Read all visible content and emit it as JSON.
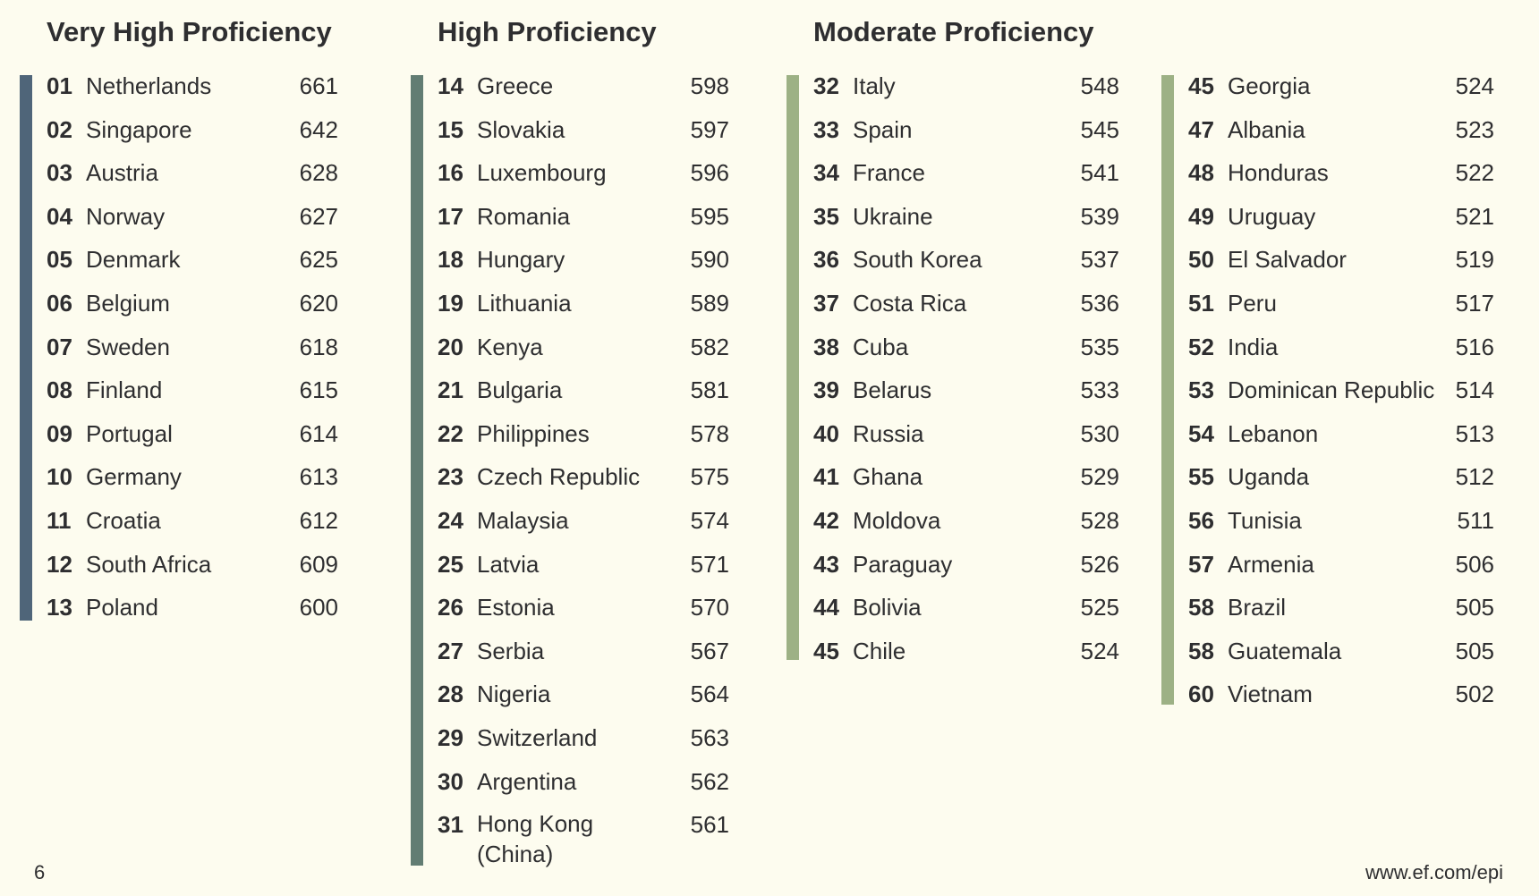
{
  "groups": [
    {
      "title": "Very High Proficiency",
      "color": "#4f6579",
      "rows": [
        {
          "rank": "01",
          "country": "Netherlands",
          "score": "661"
        },
        {
          "rank": "02",
          "country": "Singapore",
          "score": "642"
        },
        {
          "rank": "03",
          "country": "Austria",
          "score": "628"
        },
        {
          "rank": "04",
          "country": "Norway",
          "score": "627"
        },
        {
          "rank": "05",
          "country": "Denmark",
          "score": "625"
        },
        {
          "rank": "06",
          "country": "Belgium",
          "score": "620"
        },
        {
          "rank": "07",
          "country": "Sweden",
          "score": "618"
        },
        {
          "rank": "08",
          "country": "Finland",
          "score": "615"
        },
        {
          "rank": "09",
          "country": "Portugal",
          "score": "614"
        },
        {
          "rank": "10",
          "country": "Germany",
          "score": "613"
        },
        {
          "rank": "11",
          "country": "Croatia",
          "score": "612"
        },
        {
          "rank": "12",
          "country": "South Africa",
          "score": "609"
        },
        {
          "rank": "13",
          "country": "Poland",
          "score": "600"
        }
      ]
    },
    {
      "title": "High Proficiency",
      "color": "#627d73",
      "rows": [
        {
          "rank": "14",
          "country": "Greece",
          "score": "598"
        },
        {
          "rank": "15",
          "country": "Slovakia",
          "score": "597"
        },
        {
          "rank": "16",
          "country": "Luxembourg",
          "score": "596"
        },
        {
          "rank": "17",
          "country": "Romania",
          "score": "595"
        },
        {
          "rank": "18",
          "country": "Hungary",
          "score": "590"
        },
        {
          "rank": "19",
          "country": "Lithuania",
          "score": "589"
        },
        {
          "rank": "20",
          "country": "Kenya",
          "score": "582"
        },
        {
          "rank": "21",
          "country": "Bulgaria",
          "score": "581"
        },
        {
          "rank": "22",
          "country": "Philippines",
          "score": "578"
        },
        {
          "rank": "23",
          "country": "Czech Republic",
          "score": "575"
        },
        {
          "rank": "24",
          "country": "Malaysia",
          "score": "574"
        },
        {
          "rank": "25",
          "country": "Latvia",
          "score": "571"
        },
        {
          "rank": "26",
          "country": "Estonia",
          "score": "570"
        },
        {
          "rank": "27",
          "country": "Serbia",
          "score": "567"
        },
        {
          "rank": "28",
          "country": "Nigeria",
          "score": "564"
        },
        {
          "rank": "29",
          "country": "Switzerland",
          "score": "563"
        },
        {
          "rank": "30",
          "country": "Argentina",
          "score": "562"
        },
        {
          "rank": "31",
          "country": "Hong Kong (China)",
          "score": "561"
        }
      ]
    },
    {
      "title": "Moderate Proficiency",
      "color": "#9db185",
      "rows": [
        {
          "rank": "32",
          "country": "Italy",
          "score": "548"
        },
        {
          "rank": "33",
          "country": "Spain",
          "score": "545"
        },
        {
          "rank": "34",
          "country": "France",
          "score": "541"
        },
        {
          "rank": "35",
          "country": "Ukraine",
          "score": "539"
        },
        {
          "rank": "36",
          "country": "South Korea",
          "score": "537"
        },
        {
          "rank": "37",
          "country": "Costa Rica",
          "score": "536"
        },
        {
          "rank": "38",
          "country": "Cuba",
          "score": "535"
        },
        {
          "rank": "39",
          "country": "Belarus",
          "score": "533"
        },
        {
          "rank": "40",
          "country": "Russia",
          "score": "530"
        },
        {
          "rank": "41",
          "country": "Ghana",
          "score": "529"
        },
        {
          "rank": "42",
          "country": "Moldova",
          "score": "528"
        },
        {
          "rank": "43",
          "country": "Paraguay",
          "score": "526"
        },
        {
          "rank": "44",
          "country": "Bolivia",
          "score": "525"
        },
        {
          "rank": "45",
          "country": "Chile",
          "score": "524"
        }
      ]
    },
    {
      "title": "",
      "color": "#9db185",
      "rows": [
        {
          "rank": "45",
          "country": "Georgia",
          "score": "524"
        },
        {
          "rank": "47",
          "country": "Albania",
          "score": "523"
        },
        {
          "rank": "48",
          "country": "Honduras",
          "score": "522"
        },
        {
          "rank": "49",
          "country": "Uruguay",
          "score": "521"
        },
        {
          "rank": "50",
          "country": "El Salvador",
          "score": "519"
        },
        {
          "rank": "51",
          "country": "Peru",
          "score": "517"
        },
        {
          "rank": "52",
          "country": "India",
          "score": "516"
        },
        {
          "rank": "53",
          "country": "Dominican Republic",
          "score": "514"
        },
        {
          "rank": "54",
          "country": "Lebanon",
          "score": "513"
        },
        {
          "rank": "55",
          "country": "Uganda",
          "score": "512"
        },
        {
          "rank": "56",
          "country": "Tunisia",
          "score": "511"
        },
        {
          "rank": "57",
          "country": "Armenia",
          "score": "506"
        },
        {
          "rank": "58",
          "country": "Brazil",
          "score": "505"
        },
        {
          "rank": "58",
          "country": "Guatemala",
          "score": "505"
        },
        {
          "rank": "60",
          "country": "Vietnam",
          "score": "502"
        }
      ]
    }
  ],
  "footer": {
    "page_number": "6",
    "url": "www.ef.com/epi"
  }
}
